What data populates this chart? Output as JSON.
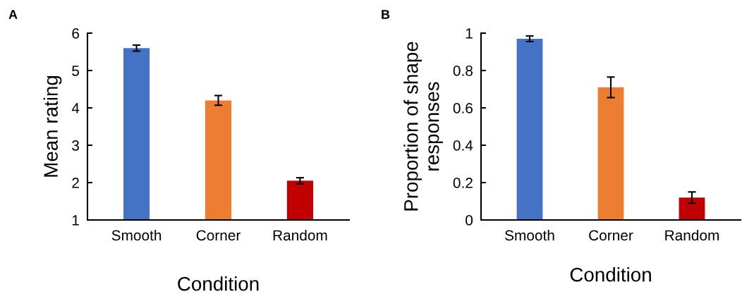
{
  "chart_data": [
    {
      "type": "bar",
      "title": "A",
      "xlabel": "Condition",
      "ylabel": "Mean rating",
      "categories": [
        "Smooth",
        "Corner",
        "Random"
      ],
      "values": [
        5.6,
        4.2,
        2.05
      ],
      "errors": [
        0.08,
        0.13,
        0.08
      ],
      "colors": [
        "#4472c4",
        "#ed7d31",
        "#c00000"
      ],
      "ylim": [
        1,
        6
      ],
      "yticks": [
        1,
        2,
        3,
        4,
        5,
        6
      ],
      "grid": false
    },
    {
      "type": "bar",
      "title": "B",
      "xlabel": "Condition",
      "ylabel": "Proportion of shape\nresponses",
      "categories": [
        "Smooth",
        "Corner",
        "Random"
      ],
      "values": [
        0.97,
        0.71,
        0.12
      ],
      "errors": [
        0.015,
        0.055,
        0.03
      ],
      "colors": [
        "#4472c4",
        "#ed7d31",
        "#c00000"
      ],
      "ylim": [
        0,
        1
      ],
      "yticks": [
        0,
        0.2,
        0.4,
        0.6,
        0.8,
        1
      ],
      "grid": false
    }
  ]
}
